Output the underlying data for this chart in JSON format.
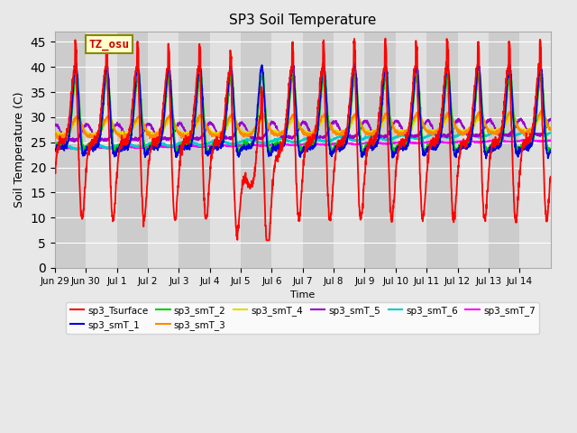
{
  "title": "SP3 Soil Temperature",
  "xlabel": "Time",
  "ylabel": "Soil Temperature (C)",
  "annotation": "TZ_osu",
  "ylim": [
    0,
    47
  ],
  "yticks": [
    0,
    5,
    10,
    15,
    20,
    25,
    30,
    35,
    40,
    45
  ],
  "legend_entries": [
    {
      "label": "sp3_Tsurface",
      "color": "#ff0000"
    },
    {
      "label": "sp3_smT_1",
      "color": "#0000dd"
    },
    {
      "label": "sp3_smT_2",
      "color": "#00cc00"
    },
    {
      "label": "sp3_smT_3",
      "color": "#ff8800"
    },
    {
      "label": "sp3_smT_4",
      "color": "#dddd00"
    },
    {
      "label": "sp3_smT_5",
      "color": "#9900cc"
    },
    {
      "label": "sp3_smT_6",
      "color": "#00cccc"
    },
    {
      "label": "sp3_smT_7",
      "color": "#ff00ff"
    }
  ],
  "x_tick_labels": [
    "Jun 29",
    "Jun 30",
    "Jul 1",
    "Jul 2",
    "Jul 3",
    "Jul 4",
    "Jul 5",
    "Jul 6",
    "Jul 7",
    "Jul 8",
    "Jul 9",
    "Jul 10",
    "Jul 11",
    "Jul 12",
    "Jul 13",
    "Jul 14"
  ],
  "n_days": 16,
  "seed": 42,
  "fig_facecolor": "#e8e8e8",
  "ax_facecolor": "#d4d4d4",
  "stripe_even": "#cccccc",
  "stripe_odd": "#e0e0e0",
  "grid_color": "#ffffff"
}
